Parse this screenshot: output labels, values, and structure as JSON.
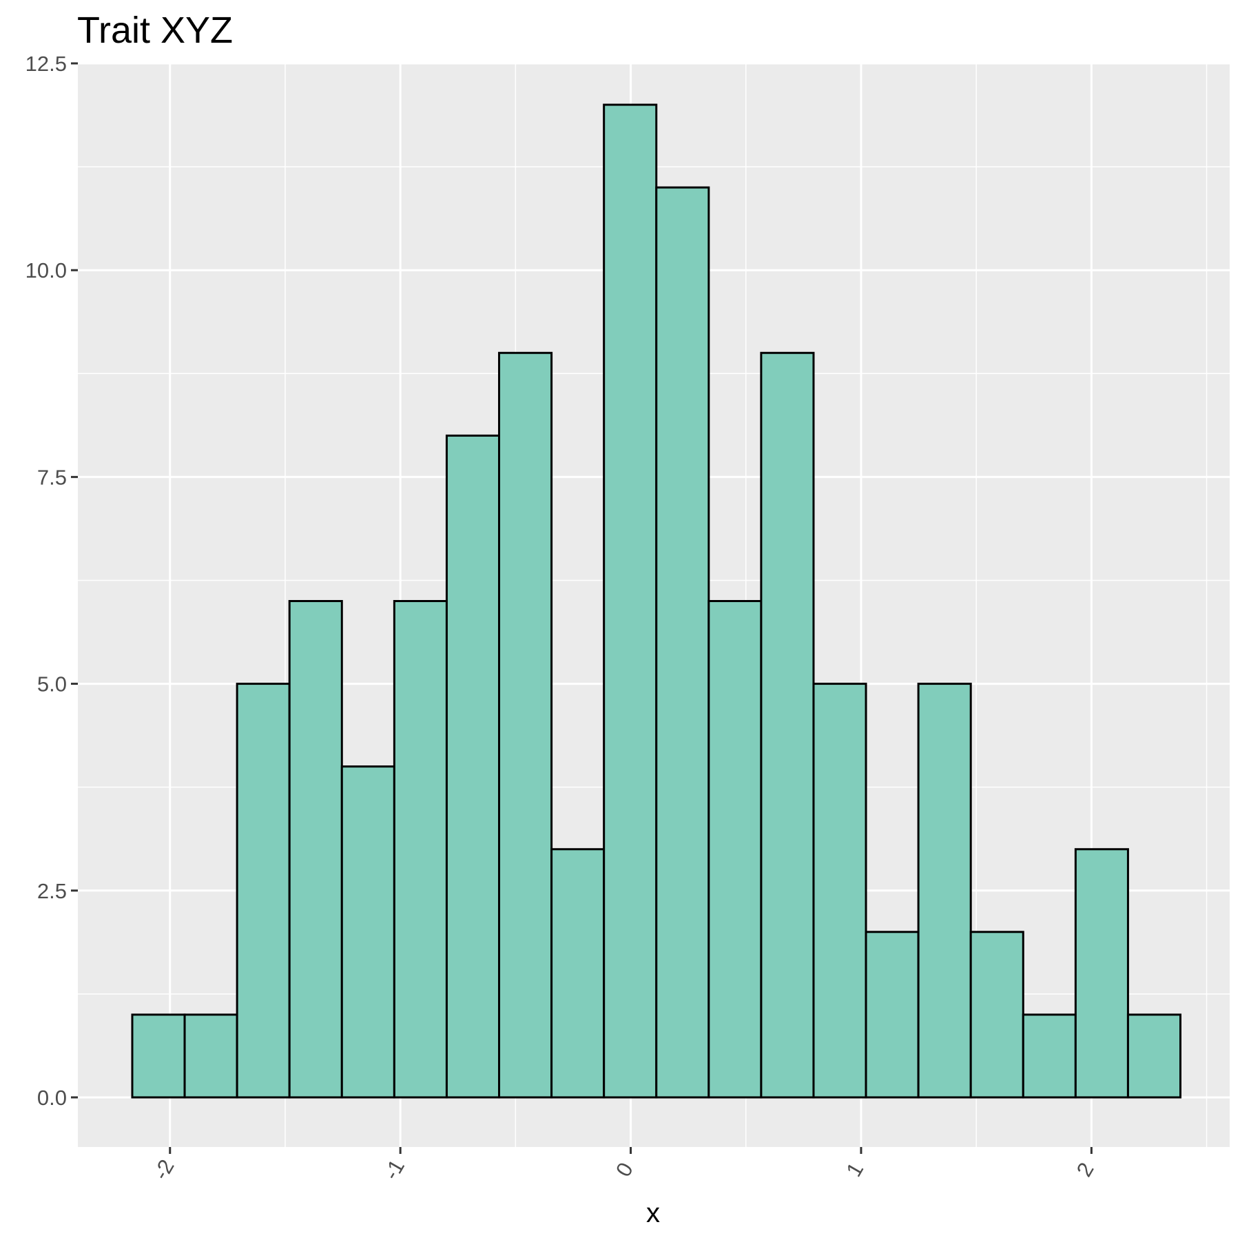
{
  "chart_data": {
    "type": "bar",
    "title": "Trait XYZ",
    "xlabel": "x",
    "ylabel": "",
    "bin_width": 0.2275,
    "bin_starts": [
      -2.1638,
      -1.9363,
      -1.7088,
      -1.4813,
      -1.2538,
      -1.0263,
      -0.7988,
      -0.5713,
      -0.3438,
      -0.1163,
      0.1112,
      0.3387,
      0.5662,
      0.7937,
      1.0212,
      1.2487,
      1.4762,
      1.7037,
      1.9312,
      2.1587
    ],
    "values": [
      1,
      1,
      5,
      6,
      4,
      6,
      8,
      9,
      3,
      12,
      11,
      6,
      9,
      5,
      2,
      5,
      2,
      1,
      3,
      1
    ],
    "xlim": [
      -2.4,
      2.6
    ],
    "ylim": [
      -0.6,
      12.5
    ],
    "x_ticks": [
      -2,
      -1,
      0,
      1,
      2
    ],
    "x_tick_labels": [
      "-2",
      "-1",
      "0",
      "1",
      "2"
    ],
    "y_ticks": [
      0,
      2.5,
      5,
      7.5,
      10,
      12.5
    ],
    "y_tick_labels": [
      "0.0",
      "2.5",
      "5.0",
      "7.5",
      "10.0",
      "12.5"
    ],
    "grid": true,
    "panel_color": "#ebebeb",
    "bar_fill_color": "#81cdbb",
    "bar_outline_color": "#000000"
  }
}
